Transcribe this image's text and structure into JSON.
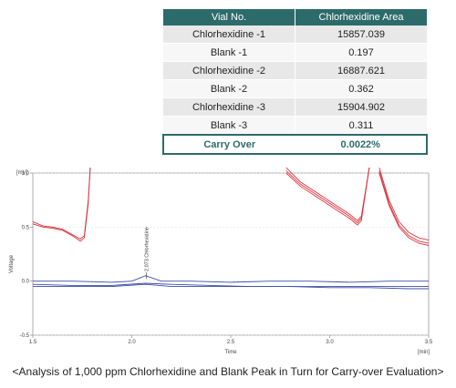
{
  "table": {
    "headers": [
      "Vial No.",
      "Chlorhexidine Area"
    ],
    "rows": [
      {
        "vial": "Chlorhexidine -1",
        "area": "15857.039"
      },
      {
        "vial": "Blank -1",
        "area": "0.197"
      },
      {
        "vial": "Chlorhexidine -2",
        "area": "16887.621"
      },
      {
        "vial": "Blank -2",
        "area": "0.362"
      },
      {
        "vial": "Chlorhexidine -3",
        "area": "15904.902"
      },
      {
        "vial": "Blank -3",
        "area": "0.311"
      }
    ],
    "carry_over": {
      "label": "Carry Over",
      "value": "0.0022%"
    }
  },
  "chart_data": {
    "type": "line",
    "xlabel": "Time",
    "ylabel": "Voltage",
    "y_unit": "[mV]",
    "x_unit": "[min]",
    "xlim": [
      1.5,
      3.5
    ],
    "ylim": [
      -0.5,
      1.0
    ],
    "xticks": [
      "1.5",
      "2.0",
      "2.5",
      "3.0",
      "3.5"
    ],
    "yticks": [
      "1.0",
      "0.5",
      "0.0",
      "-0.5"
    ],
    "annotation": {
      "text": "2.073 Chlorhexidine",
      "x": 2.073
    },
    "series": [
      {
        "role": "chlorhexidine",
        "color": "#d9363e",
        "points": [
          [
            1.5,
            0.55
          ],
          [
            1.55,
            0.51
          ],
          [
            1.6,
            0.5
          ],
          [
            1.65,
            0.48
          ],
          [
            1.7,
            0.43
          ],
          [
            1.74,
            0.39
          ],
          [
            1.76,
            0.42
          ],
          [
            1.78,
            0.75
          ],
          [
            1.79,
            1.05
          ]
        ]
      },
      {
        "role": "chlorhexidine",
        "color": "#d9363e",
        "points": [
          [
            1.5,
            0.53
          ],
          [
            1.55,
            0.5
          ],
          [
            1.6,
            0.49
          ],
          [
            1.65,
            0.47
          ],
          [
            1.7,
            0.42
          ],
          [
            1.74,
            0.37
          ],
          [
            1.76,
            0.4
          ],
          [
            1.78,
            0.72
          ],
          [
            1.79,
            1.05
          ]
        ]
      },
      {
        "role": "chlorhexidine",
        "color": "#d9363e",
        "points": [
          [
            2.78,
            1.05
          ],
          [
            2.85,
            0.92
          ],
          [
            2.95,
            0.8
          ],
          [
            3.05,
            0.68
          ],
          [
            3.1,
            0.62
          ],
          [
            3.14,
            0.56
          ],
          [
            3.16,
            0.6
          ],
          [
            3.2,
            1.05
          ]
        ]
      },
      {
        "role": "chlorhexidine",
        "color": "#d9363e",
        "points": [
          [
            2.78,
            1.02
          ],
          [
            2.85,
            0.9
          ],
          [
            2.95,
            0.78
          ],
          [
            3.05,
            0.66
          ],
          [
            3.1,
            0.6
          ],
          [
            3.14,
            0.54
          ],
          [
            3.16,
            0.58
          ],
          [
            3.2,
            1.05
          ]
        ]
      },
      {
        "role": "chlorhexidine",
        "color": "#d9363e",
        "points": [
          [
            2.78,
            1.0
          ],
          [
            2.85,
            0.88
          ],
          [
            2.95,
            0.76
          ],
          [
            3.05,
            0.64
          ],
          [
            3.1,
            0.58
          ],
          [
            3.14,
            0.52
          ],
          [
            3.16,
            0.56
          ],
          [
            3.2,
            1.05
          ]
        ]
      },
      {
        "role": "chlorhexidine",
        "color": "#d9363e",
        "points": [
          [
            3.25,
            1.05
          ],
          [
            3.3,
            0.75
          ],
          [
            3.35,
            0.55
          ],
          [
            3.4,
            0.45
          ],
          [
            3.45,
            0.4
          ],
          [
            3.5,
            0.38
          ]
        ]
      },
      {
        "role": "chlorhexidine",
        "color": "#d9363e",
        "points": [
          [
            3.25,
            1.02
          ],
          [
            3.3,
            0.72
          ],
          [
            3.35,
            0.52
          ],
          [
            3.4,
            0.42
          ],
          [
            3.45,
            0.37
          ],
          [
            3.5,
            0.35
          ]
        ]
      },
      {
        "role": "chlorhexidine",
        "color": "#d9363e",
        "points": [
          [
            3.25,
            1.0
          ],
          [
            3.3,
            0.7
          ],
          [
            3.35,
            0.5
          ],
          [
            3.4,
            0.4
          ],
          [
            3.45,
            0.35
          ],
          [
            3.5,
            0.33
          ]
        ]
      },
      {
        "role": "blank",
        "color": "#3b4fa8",
        "points": [
          [
            1.5,
            0.0
          ],
          [
            1.7,
            0.0
          ],
          [
            1.9,
            -0.01
          ],
          [
            2.0,
            0.0
          ],
          [
            2.07,
            0.05
          ],
          [
            2.15,
            0.0
          ],
          [
            2.3,
            0.0
          ],
          [
            2.5,
            -0.01
          ],
          [
            2.7,
            0.0
          ],
          [
            2.9,
            0.0
          ],
          [
            3.1,
            -0.01
          ],
          [
            3.3,
            0.0
          ],
          [
            3.5,
            0.0
          ]
        ]
      },
      {
        "role": "blank",
        "color": "#3b4fa8",
        "points": [
          [
            1.5,
            -0.03
          ],
          [
            1.7,
            -0.04
          ],
          [
            1.9,
            -0.04
          ],
          [
            2.07,
            -0.02
          ],
          [
            2.2,
            -0.03
          ],
          [
            2.4,
            -0.04
          ],
          [
            2.6,
            -0.05
          ],
          [
            2.8,
            -0.05
          ],
          [
            3.0,
            -0.06
          ],
          [
            3.2,
            -0.06
          ],
          [
            3.4,
            -0.07
          ],
          [
            3.5,
            -0.07
          ]
        ]
      },
      {
        "role": "blank",
        "color": "#3b4fa8",
        "points": [
          [
            1.5,
            -0.05
          ],
          [
            1.7,
            -0.05
          ],
          [
            1.9,
            -0.05
          ],
          [
            2.07,
            -0.03
          ],
          [
            2.2,
            -0.05
          ],
          [
            2.4,
            -0.05
          ],
          [
            2.6,
            -0.05
          ],
          [
            2.8,
            -0.05
          ],
          [
            3.0,
            -0.05
          ],
          [
            3.2,
            -0.05
          ],
          [
            3.4,
            -0.05
          ],
          [
            3.5,
            -0.05
          ]
        ]
      }
    ]
  },
  "caption": "<Analysis of 1,000 ppm Chlorhexidine and Blank Peak in Turn for Carry-over Evaluation>"
}
